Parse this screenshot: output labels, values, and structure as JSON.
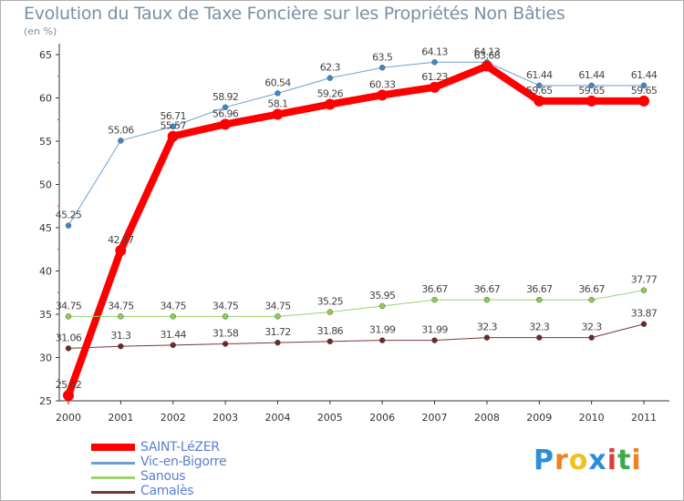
{
  "chart_data": {
    "type": "line",
    "title": "Evolution du Taux de Taxe Foncière sur les Propriétés Non Bâties",
    "ylabel": "(en %)",
    "xlabel": "",
    "categories": [
      "2000",
      "2001",
      "2002",
      "2003",
      "2004",
      "2005",
      "2006",
      "2007",
      "2008",
      "2009",
      "2010",
      "2011"
    ],
    "ylim": [
      25,
      65
    ],
    "yticks": [
      25,
      30,
      35,
      40,
      45,
      50,
      55,
      60,
      65
    ],
    "grid": false,
    "legend_position": "bottom-left",
    "series": [
      {
        "name": "Vic-en-Bigorre",
        "color": "#6f9fd0",
        "marker": "#3f86c8",
        "width": 1,
        "values": [
          45.25,
          55.06,
          56.71,
          58.92,
          60.54,
          62.3,
          63.5,
          64.13,
          64.13,
          61.44,
          61.44,
          61.44
        ],
        "labels": [
          "45.25",
          "55.06",
          "56.71",
          "58.92",
          "60.54",
          "62.3",
          "63.5",
          "64.13",
          "64.13",
          "61.44",
          "61.44",
          "61.44"
        ]
      },
      {
        "name": "SAINT-LéZER",
        "color": "#ff0000",
        "marker": "#ff0000",
        "width": 8,
        "values": [
          25.62,
          42.37,
          55.57,
          56.96,
          58.1,
          59.26,
          60.33,
          61.23,
          63.68,
          59.65,
          59.65,
          59.65
        ],
        "labels": [
          "25.62",
          "42.37",
          "55.57",
          "56.96",
          "58.1",
          "59.26",
          "60.33",
          "61.23",
          "63.68",
          "59.65",
          "59.65",
          "59.65"
        ]
      },
      {
        "name": "Sanous",
        "color": "#9ad46a",
        "marker": "#8ccc55",
        "width": 1,
        "values": [
          34.75,
          34.75,
          34.75,
          34.75,
          34.75,
          35.25,
          35.95,
          36.67,
          36.67,
          36.67,
          36.67,
          37.77
        ],
        "labels": [
          "34.75",
          "34.75",
          "34.75",
          "34.75",
          "34.75",
          "35.25",
          "35.95",
          "36.67",
          "36.67",
          "36.67",
          "36.67",
          "37.77"
        ]
      },
      {
        "name": "Camalès",
        "color": "#7a3535",
        "marker": "#6b2a2a",
        "width": 1,
        "values": [
          31.06,
          31.3,
          31.44,
          31.58,
          31.72,
          31.86,
          31.99,
          31.99,
          32.3,
          32.3,
          32.3,
          33.87
        ],
        "labels": [
          "31.06",
          "31.3",
          "31.44",
          "31.58",
          "31.72",
          "31.86",
          "31.99",
          "31.99",
          "32.3",
          "32.3",
          "32.3",
          "33.87"
        ]
      }
    ]
  },
  "legend": [
    {
      "label": "SAINT-LéZER",
      "color": "#ff0000",
      "thick": true
    },
    {
      "label": "Vic-en-Bigorre",
      "color": "#6f9fd0",
      "thick": false
    },
    {
      "label": "Sanous",
      "color": "#9ad46a",
      "thick": false
    },
    {
      "label": "Camalès",
      "color": "#7a3535",
      "thick": false
    }
  ],
  "logo": {
    "text": "Proxiti",
    "letters": [
      "P",
      "r",
      "o",
      "x",
      "i",
      "t",
      "i"
    ],
    "colors": [
      "#2a8fd6",
      "#f08020",
      "#f0c020",
      "#2a8fd6",
      "#e03a3a",
      "#3aaa4a",
      "#f08020"
    ]
  }
}
